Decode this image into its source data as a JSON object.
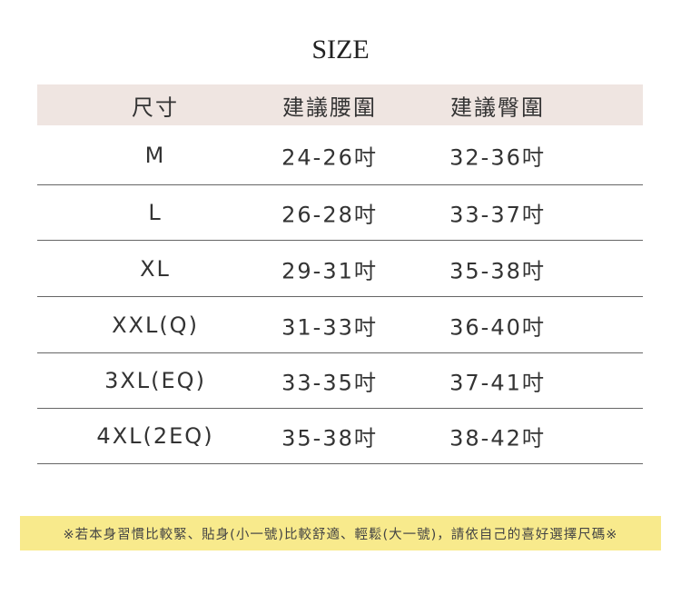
{
  "title": "SIZE",
  "headers": [
    "尺寸",
    "建議腰圍",
    "建議臀圍"
  ],
  "rows": [
    [
      "M",
      "24-26吋",
      "32-36吋"
    ],
    [
      "L",
      "26-28吋",
      "33-37吋"
    ],
    [
      "XL",
      "29-31吋",
      "35-38吋"
    ],
    [
      "XXL(Q)",
      "31-33吋",
      "36-40吋"
    ],
    [
      "3XL(EQ)",
      "33-35吋",
      "37-41吋"
    ],
    [
      "4XL(2EQ)",
      "35-38吋",
      "38-42吋"
    ]
  ],
  "note": "※若本身習慣比較緊、貼身(小一號)比較舒適、輕鬆(大一號)，請依自己的喜好選擇尺碼※",
  "colors": {
    "header_bg": "#efe5e1",
    "note_bg": "#f8ea8c"
  }
}
